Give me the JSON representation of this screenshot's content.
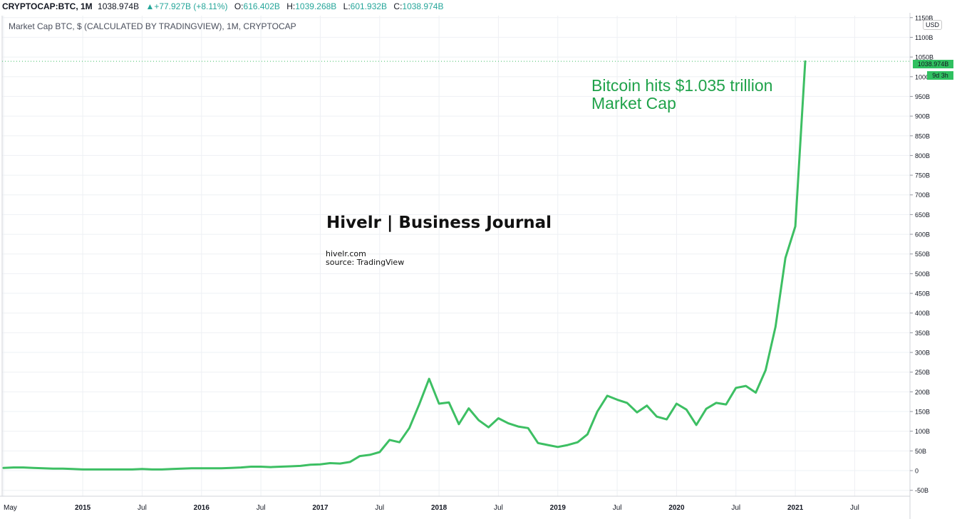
{
  "header": {
    "symbol": "CRYPTOCAP:BTC, 1M",
    "last": "1038.974B",
    "change": "▲+77.927B (+8.11%)",
    "o_label": "O:",
    "o_value": "616.402B",
    "h_label": "H:",
    "h_value": "1039.268B",
    "l_label": "L:",
    "l_value": "601.932B",
    "c_label": "C:",
    "c_value": "1038.974B"
  },
  "subtitle": "Market Cap BTC, $ (CALCULATED BY TRADINGVIEW), 1M, CRYPTOCAP",
  "currency": "USD",
  "price_tag": "1038.974B",
  "countdown_tag": "9d 3h",
  "annotation": {
    "line1": "Bitcoin hits $1.035 trillion",
    "line2": "Market Cap"
  },
  "watermark": {
    "title": "Hivelr | Business Journal",
    "site": "hivelr.com",
    "source": "source: TradingView"
  },
  "colors": {
    "line": "#3dbf63",
    "accent_text": "#1fa24a",
    "ohlc_value": "#26a69a",
    "grid": "#eef0f4"
  },
  "chart_data": {
    "type": "line",
    "x_start": "2014-05",
    "x_end": "2021-02",
    "x": [
      "2014-05",
      "2014-06",
      "2014-07",
      "2014-08",
      "2014-09",
      "2014-10",
      "2014-11",
      "2014-12",
      "2015-01",
      "2015-02",
      "2015-03",
      "2015-04",
      "2015-05",
      "2015-06",
      "2015-07",
      "2015-08",
      "2015-09",
      "2015-10",
      "2015-11",
      "2015-12",
      "2016-01",
      "2016-02",
      "2016-03",
      "2016-04",
      "2016-05",
      "2016-06",
      "2016-07",
      "2016-08",
      "2016-09",
      "2016-10",
      "2016-11",
      "2016-12",
      "2017-01",
      "2017-02",
      "2017-03",
      "2017-04",
      "2017-05",
      "2017-06",
      "2017-07",
      "2017-08",
      "2017-09",
      "2017-10",
      "2017-11",
      "2017-12",
      "2018-01",
      "2018-02",
      "2018-03",
      "2018-04",
      "2018-05",
      "2018-06",
      "2018-07",
      "2018-08",
      "2018-09",
      "2018-10",
      "2018-11",
      "2018-12",
      "2019-01",
      "2019-02",
      "2019-03",
      "2019-04",
      "2019-05",
      "2019-06",
      "2019-07",
      "2019-08",
      "2019-09",
      "2019-10",
      "2019-11",
      "2019-12",
      "2020-01",
      "2020-02",
      "2020-03",
      "2020-04",
      "2020-05",
      "2020-06",
      "2020-07",
      "2020-08",
      "2020-09",
      "2020-10",
      "2020-11",
      "2020-12",
      "2021-01",
      "2021-02"
    ],
    "values": [
      7,
      8,
      8,
      7,
      6,
      5,
      5,
      4,
      3,
      3,
      3,
      3,
      3,
      3,
      4,
      3,
      3,
      4,
      5,
      6,
      6,
      6,
      6,
      7,
      8,
      10,
      10,
      9,
      10,
      11,
      12,
      15,
      16,
      19,
      18,
      22,
      37,
      40,
      47,
      78,
      72,
      108,
      168,
      233,
      170,
      173,
      118,
      158,
      128,
      110,
      133,
      120,
      112,
      108,
      70,
      65,
      60,
      65,
      72,
      92,
      150,
      190,
      180,
      172,
      148,
      165,
      137,
      130,
      170,
      155,
      116,
      157,
      172,
      168,
      210,
      215,
      198,
      255,
      365,
      540,
      620,
      1039
    ],
    "annotation_value": 1039,
    "ylabel": "",
    "y_unit": "B",
    "ylim": [
      -65,
      1155
    ],
    "y_ticks": [
      -50,
      0,
      50,
      100,
      150,
      200,
      250,
      300,
      350,
      400,
      450,
      500,
      550,
      600,
      650,
      700,
      750,
      800,
      850,
      900,
      950,
      1000,
      1050,
      1100,
      1150
    ],
    "y_tick_labels": [
      "-50B",
      "0",
      "50B",
      "100B",
      "150B",
      "200B",
      "250B",
      "300B",
      "350B",
      "400B",
      "450B",
      "500B",
      "550B",
      "600B",
      "650B",
      "700B",
      "750B",
      "800B",
      "850B",
      "900B",
      "950B",
      "1000B",
      "1050B",
      "1100B",
      "1150B"
    ],
    "x_ticks": [
      "2014-05",
      "2015-01",
      "2015-07",
      "2016-01",
      "2016-07",
      "2017-01",
      "2017-07",
      "2018-01",
      "2018-07",
      "2019-01",
      "2019-07",
      "2020-01",
      "2020-07",
      "2021-01",
      "2021-07"
    ],
    "x_tick_labels": [
      "May",
      "2015",
      "Jul",
      "2016",
      "Jul",
      "2017",
      "Jul",
      "2018",
      "Jul",
      "2019",
      "Jul",
      "2020",
      "Jul",
      "2021",
      "Jul"
    ],
    "grid": true,
    "legend": "none"
  }
}
